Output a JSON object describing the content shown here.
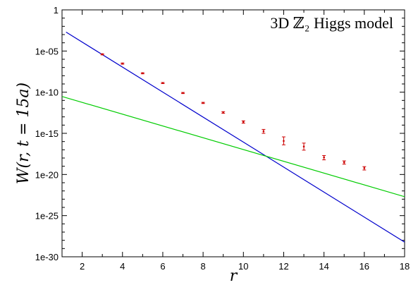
{
  "chart_data": {
    "type": "scatter",
    "title": "3D ℤ₂ Higgs model",
    "xlabel": "r",
    "ylabel": "W(r, t = 15a)",
    "xscale": "linear",
    "yscale": "log",
    "xlim": [
      1,
      18
    ],
    "ylim": [
      1e-30,
      1
    ],
    "xticks": [
      2,
      4,
      6,
      8,
      10,
      12,
      14,
      16,
      18
    ],
    "xtick_labels": [
      "2",
      "4",
      "6",
      "8",
      "10",
      "12",
      "14",
      "16",
      "18"
    ],
    "yticks": [
      1e-30,
      1e-25,
      1e-20,
      1e-15,
      1e-10,
      1e-05,
      1
    ],
    "ytick_labels": [
      "1e-30",
      "1e-25",
      "1e-20",
      "1e-15",
      "1e-10",
      "1e-05",
      "1"
    ],
    "grid": false,
    "legend": "none",
    "series": [
      {
        "kind": "points-with-errorbars",
        "color": "#cc0000",
        "x": [
          3,
          4,
          5,
          6,
          7,
          8,
          9,
          10,
          11,
          12,
          13,
          14,
          15,
          16
        ],
        "y": [
          4e-06,
          3e-07,
          2e-08,
          1.3e-09,
          8e-11,
          5e-12,
          3.5e-13,
          2.5e-14,
          1.8e-15,
          1.2e-16,
          2.5e-17,
          1.2e-18,
          3e-19,
          6e-20
        ],
        "y_err_low": [
          6e-07,
          5e-08,
          3e-09,
          2e-10,
          1.2e-11,
          8e-13,
          8e-14,
          8e-15,
          8e-16,
          8e-17,
          1.6e-17,
          6e-19,
          1.2e-19,
          2.5e-20
        ],
        "y_err_high": [
          6e-07,
          5e-08,
          3e-09,
          2e-10,
          1.2e-11,
          8e-13,
          8e-14,
          8e-15,
          1.2e-15,
          2.5e-16,
          4e-17,
          8e-19,
          1.5e-19,
          3e-20
        ]
      },
      {
        "kind": "fit-line",
        "color": "#0000cc",
        "x": [
          1.2,
          18
        ],
        "y": [
          0.002,
          6e-29
        ]
      },
      {
        "kind": "fit-line",
        "color": "#00cc00",
        "x": [
          1,
          18
        ],
        "y": [
          3e-11,
          2e-23
        ]
      }
    ]
  }
}
